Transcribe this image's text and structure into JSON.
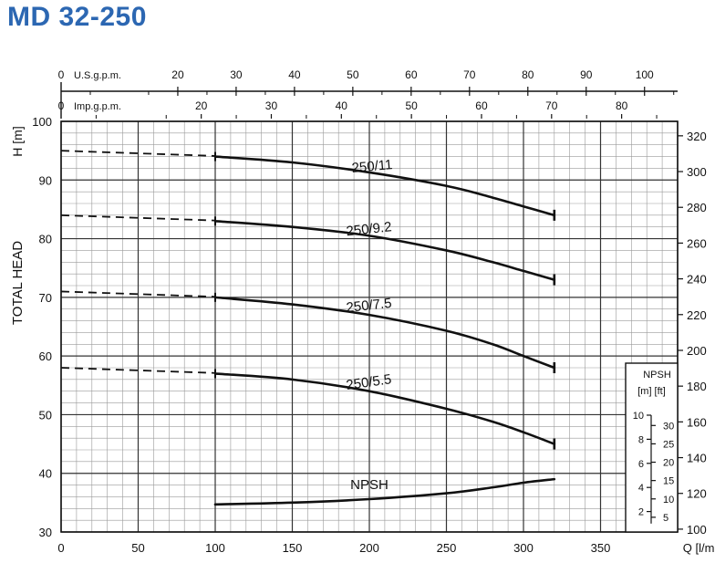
{
  "title": "MD 32-250",
  "colors": {
    "title": "#2c67b2",
    "curve": "#111111",
    "grid": "#9a9a9a"
  },
  "chart_data": {
    "type": "line",
    "xlabel": "Q [l/min]",
    "ylabel": "TOTAL HEAD",
    "ylabel_unit": "H [m]",
    "xlim": [
      0,
      400
    ],
    "ylim": [
      30,
      100
    ],
    "x_ticks": [
      "0",
      "50",
      "100",
      "150",
      "200",
      "250",
      "300",
      "350"
    ],
    "y_ticks": [
      "30",
      "40",
      "50",
      "60",
      "70",
      "80",
      "90",
      "100"
    ],
    "y_ft_ticks": [
      "100",
      "120",
      "140",
      "160",
      "180",
      "200",
      "220",
      "240",
      "260",
      "280",
      "300",
      "320"
    ],
    "us_gpm_label": "U.S.g.p.m.",
    "us_gpm_ticks": [
      "0",
      "20",
      "30",
      "40",
      "50",
      "60",
      "70",
      "80",
      "90",
      "100"
    ],
    "imp_gpm_label": "Imp.g.p.m.",
    "imp_gpm_ticks": [
      "0",
      "20",
      "30",
      "40",
      "50",
      "60",
      "70",
      "80"
    ],
    "npsh_box": {
      "title": "NPSH",
      "units": "[m]  [ft]",
      "m_ticks": [
        "2",
        "4",
        "6",
        "8",
        "10"
      ],
      "ft_ticks": [
        "5",
        "10",
        "15",
        "20",
        "25",
        "30"
      ]
    },
    "series": [
      {
        "name": "250/11",
        "label": "250/11",
        "dashed_x": [
          0,
          100
        ],
        "dashed_y": [
          95,
          94.1
        ],
        "x": [
          100,
          150,
          200,
          250,
          280,
          300,
          320
        ],
        "y": [
          94,
          93,
          91.3,
          89,
          87,
          85.5,
          84
        ]
      },
      {
        "name": "250/9.2",
        "label": "250/9.2",
        "dashed_x": [
          0,
          100
        ],
        "dashed_y": [
          84,
          83.1
        ],
        "x": [
          100,
          150,
          200,
          250,
          280,
          300,
          320
        ],
        "y": [
          83,
          82,
          80.5,
          78,
          76,
          74.5,
          73
        ]
      },
      {
        "name": "250/7.5",
        "label": "250/7.5",
        "dashed_x": [
          0,
          100
        ],
        "dashed_y": [
          71,
          70.1
        ],
        "x": [
          100,
          150,
          200,
          250,
          280,
          300,
          320
        ],
        "y": [
          70,
          68.8,
          67,
          64.3,
          62,
          60,
          58
        ]
      },
      {
        "name": "250/5.5",
        "label": "250/5.5",
        "dashed_x": [
          0,
          100
        ],
        "dashed_y": [
          58,
          57.1
        ],
        "x": [
          100,
          150,
          200,
          250,
          280,
          300,
          320
        ],
        "y": [
          57,
          56,
          54,
          51,
          48.8,
          47,
          45
        ]
      },
      {
        "name": "NPSH",
        "label": "NPSH",
        "x": [
          100,
          150,
          200,
          250,
          280,
          300,
          320
        ],
        "y": [
          34.7,
          35,
          35.6,
          36.6,
          37.6,
          38.4,
          39
        ]
      }
    ]
  }
}
